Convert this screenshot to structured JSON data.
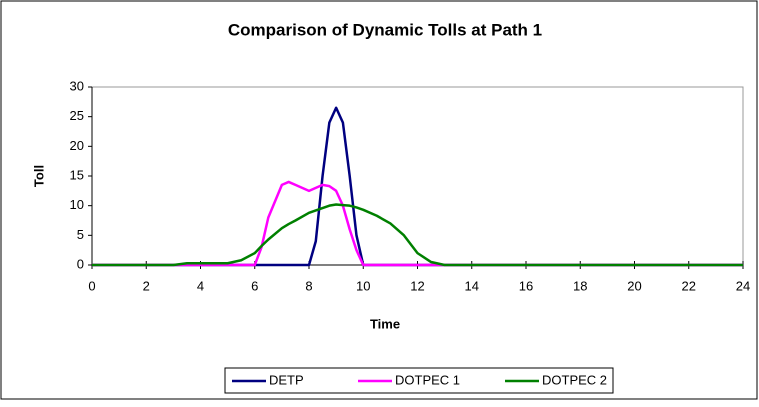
{
  "chart_data": {
    "type": "line",
    "title": "Comparison of Dynamic Tolls at Path 1",
    "x_label": "Time",
    "y_label": "Toll",
    "x": [
      0,
      1,
      2,
      3,
      3.5,
      4,
      5,
      5.5,
      6,
      6.25,
      6.5,
      7,
      7.25,
      7.5,
      8,
      8.25,
      8.5,
      8.75,
      9,
      9.25,
      9.5,
      9.75,
      10,
      10.5,
      11,
      11.5,
      12,
      12.5,
      13,
      14,
      16,
      18,
      20,
      22,
      24
    ],
    "series": [
      {
        "name": "DETP",
        "color": "#000080",
        "values": [
          0,
          0,
          0,
          0,
          0,
          0,
          0,
          0,
          0,
          0,
          0,
          0,
          0,
          0,
          0,
          4,
          15,
          24,
          26.5,
          24,
          15,
          5,
          0,
          0,
          0,
          0,
          0,
          0,
          0,
          0,
          0,
          0,
          0,
          0,
          0
        ]
      },
      {
        "name": "DOTPEC 1",
        "color": "#ff00ff",
        "values": [
          0,
          0,
          0,
          0,
          0,
          0,
          0,
          0,
          0,
          3,
          8,
          13.5,
          14,
          13.5,
          12.5,
          13,
          13.5,
          13.3,
          12.5,
          10,
          6,
          2.5,
          0,
          0,
          0,
          0,
          0,
          0,
          0,
          0,
          0,
          0,
          0,
          0,
          0
        ]
      },
      {
        "name": "DOTPEC 2",
        "color": "#008000",
        "values": [
          0,
          0,
          0,
          0,
          0.3,
          0.3,
          0.3,
          0.8,
          2,
          3.2,
          4.3,
          6.2,
          6.9,
          7.5,
          8.8,
          9.2,
          9.6,
          10,
          10.2,
          10.1,
          10,
          9.7,
          9.3,
          8.3,
          7,
          5,
          2,
          0.5,
          0,
          0,
          0,
          0,
          0,
          0,
          0
        ]
      }
    ],
    "xlim": [
      0,
      24
    ],
    "xticks": [
      0,
      2,
      4,
      6,
      8,
      10,
      12,
      14,
      16,
      18,
      20,
      22,
      24
    ],
    "ylim": [
      0,
      30
    ],
    "yticks": [
      0,
      5,
      10,
      15,
      20,
      25,
      30
    ],
    "grid": false,
    "legend": "bottom"
  }
}
